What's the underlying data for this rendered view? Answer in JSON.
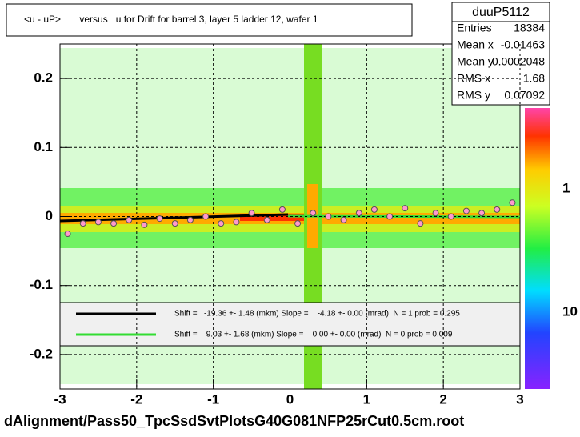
{
  "title": "<u - uP>       versus   u for Drift for barrel 3, layer 5 ladder 12, wafer 1",
  "stats": {
    "name": "duuP5112",
    "rows": [
      [
        "Entries",
        "18384"
      ],
      [
        "Mean x",
        "-0.01463"
      ],
      [
        "Mean y",
        "0.0002048"
      ],
      [
        "RMS x",
        "1.68"
      ],
      [
        "RMS y",
        "0.07092"
      ]
    ]
  },
  "footer": "dAlignment/Pass50_TpcSsdSvtPlotsG40G081NFP25rCut0.5cm.root",
  "chart_data": {
    "type": "profile",
    "xlim": [
      -3,
      3
    ],
    "ylim": [
      -0.25,
      0.25
    ],
    "xticks": [
      -3,
      -2,
      -1,
      0,
      1,
      2,
      3
    ],
    "yticks": [
      -0.2,
      -0.1,
      0,
      0.1,
      0.2
    ],
    "grid": true,
    "colorbar_ticks": [
      "1",
      "10"
    ],
    "fits": [
      {
        "label": "Shift =   -19.36 +- 1.48 (mkm) Slope =    -4.18 +- 0.00 (mrad)  N = 1 prob = 0.295",
        "color": "#000000"
      },
      {
        "label": "Shift =    9.03 +- 1.68 (mkm) Slope =    0.00 +- 0.00 (mrad)  N = 0 prob = 0.009",
        "color": "#33dd33"
      }
    ],
    "color": "#ff99cc",
    "x": [
      -2.9,
      -2.7,
      -2.5,
      -2.3,
      -2.1,
      -1.9,
      -1.7,
      -1.5,
      -1.3,
      -1.1,
      -0.9,
      -0.7,
      -0.5,
      -0.3,
      -0.1,
      0.1,
      0.3,
      0.5,
      0.7,
      0.9,
      1.1,
      1.3,
      1.5,
      1.7,
      1.9,
      2.1,
      2.3,
      2.5,
      2.7,
      2.9
    ],
    "values": [
      -0.025,
      -0.01,
      -0.008,
      -0.01,
      -0.005,
      -0.012,
      -0.003,
      -0.01,
      -0.005,
      0.0,
      -0.01,
      -0.008,
      0.005,
      -0.005,
      0.01,
      -0.01,
      0.005,
      0.0,
      -0.005,
      0.005,
      0.01,
      0.0,
      0.012,
      -0.01,
      0.005,
      0.0,
      0.008,
      0.005,
      0.01,
      0.02
    ]
  }
}
